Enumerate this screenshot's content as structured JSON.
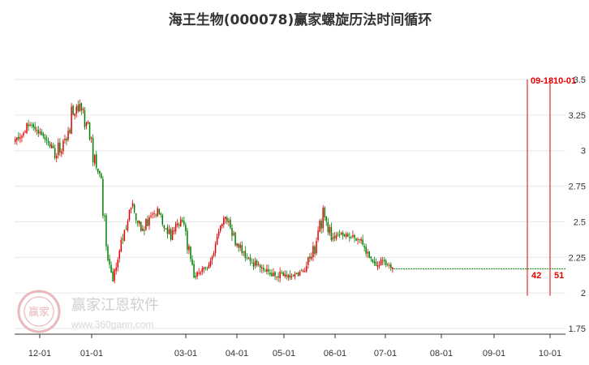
{
  "chart_data": {
    "type": "candlestick",
    "title": "海王生物(000078)赢家螺旋历法时间循环",
    "y_ticks": [
      3.5,
      3.25,
      3,
      2.75,
      2.5,
      2.25,
      2,
      1.75
    ],
    "y_tick_labels": [
      "3.5",
      "3.25",
      "3",
      "2.75",
      "2.5",
      "2.25",
      "2",
      "1.75"
    ],
    "ylim": [
      1.75,
      3.5
    ],
    "x_tick_labels": [
      "12-01",
      "01-01",
      "03-01",
      "04-01",
      "05-01",
      "06-01",
      "07-01",
      "08-01",
      "09-01",
      "10-01"
    ],
    "grid": true,
    "colors": {
      "up": "#e60000",
      "down": "#008000",
      "marker": "#e60000",
      "last_price": "#008000"
    },
    "last_close": 2.17,
    "segments": [
      {
        "label": "Dec",
        "start": 3.07,
        "end": 3.12,
        "lo": 3.0,
        "hi": 3.22,
        "days": 5
      },
      {
        "start": 3.12,
        "end": 3.2,
        "lo": 3.1,
        "hi": 3.26,
        "days": 5
      },
      {
        "start": 3.2,
        "end": 3.1,
        "lo": 3.05,
        "hi": 3.22,
        "days": 8
      },
      {
        "start": 3.1,
        "end": 2.95,
        "lo": 2.9,
        "hi": 3.12,
        "days": 8
      },
      {
        "label": "Jan",
        "start": 2.95,
        "end": 3.25,
        "lo": 2.9,
        "hi": 3.5,
        "days": 9
      },
      {
        "start": 3.25,
        "end": 3.3,
        "lo": 3.12,
        "hi": 3.4,
        "days": 6
      },
      {
        "start": 3.3,
        "end": 2.95,
        "lo": 2.8,
        "hi": 3.32,
        "days": 8
      },
      {
        "label": "Feb",
        "start": 2.95,
        "end": 2.8,
        "lo": 2.75,
        "hi": 3.0,
        "days": 4
      },
      {
        "start": 2.8,
        "end": 2.55,
        "lo": 2.5,
        "hi": 2.82,
        "days": 1
      },
      {
        "start": 2.55,
        "end": 2.05,
        "lo": 2.0,
        "hi": 2.55,
        "days": 5
      },
      {
        "start": 2.05,
        "end": 2.45,
        "lo": 2.05,
        "hi": 2.5,
        "days": 7
      },
      {
        "label": "Mar",
        "start": 2.45,
        "end": 2.58,
        "lo": 2.4,
        "hi": 2.72,
        "days": 6
      },
      {
        "start": 2.58,
        "end": 2.45,
        "lo": 2.4,
        "hi": 2.62,
        "days": 6
      },
      {
        "start": 2.45,
        "end": 2.58,
        "lo": 2.4,
        "hi": 2.62,
        "days": 8
      },
      {
        "label": "Apr",
        "start": 2.58,
        "end": 2.4,
        "lo": 2.35,
        "hi": 2.6,
        "days": 9
      },
      {
        "start": 2.4,
        "end": 2.52,
        "lo": 2.38,
        "hi": 2.55,
        "days": 6
      },
      {
        "start": 2.52,
        "end": 2.3,
        "lo": 2.25,
        "hi": 2.55,
        "days": 5
      },
      {
        "start": 2.3,
        "end": 2.12,
        "lo": 2.08,
        "hi": 2.32,
        "days": 3
      },
      {
        "start": 2.12,
        "end": 2.18,
        "lo": 2.1,
        "hi": 2.22,
        "days": 7
      },
      {
        "label": "May",
        "start": 2.18,
        "end": 2.35,
        "lo": 2.15,
        "hi": 2.4,
        "days": 6
      },
      {
        "start": 2.35,
        "end": 2.55,
        "lo": 2.3,
        "hi": 2.6,
        "days": 5
      },
      {
        "start": 2.55,
        "end": 2.38,
        "lo": 2.32,
        "hi": 2.58,
        "days": 6
      },
      {
        "start": 2.38,
        "end": 2.25,
        "lo": 2.2,
        "hi": 2.4,
        "days": 9
      },
      {
        "label": "Jun",
        "start": 2.25,
        "end": 2.15,
        "lo": 2.1,
        "hi": 2.28,
        "days": 8
      },
      {
        "start": 2.15,
        "end": 2.13,
        "lo": 2.08,
        "hi": 2.25,
        "days": 10
      },
      {
        "start": 2.13,
        "end": 2.12,
        "lo": 2.08,
        "hi": 2.2,
        "days": 8
      },
      {
        "label": "Jul",
        "start": 2.12,
        "end": 2.15,
        "lo": 2.06,
        "hi": 2.2,
        "days": 8
      },
      {
        "start": 2.15,
        "end": 2.3,
        "lo": 2.1,
        "hi": 2.35,
        "days": 5
      },
      {
        "start": 2.3,
        "end": 2.55,
        "lo": 2.25,
        "hi": 2.7,
        "days": 6
      },
      {
        "start": 2.55,
        "end": 2.4,
        "lo": 2.35,
        "hi": 2.6,
        "days": 5
      },
      {
        "label": "Aug",
        "start": 2.4,
        "end": 2.42,
        "lo": 2.35,
        "hi": 2.48,
        "days": 7
      },
      {
        "start": 2.42,
        "end": 2.38,
        "lo": 2.32,
        "hi": 2.45,
        "days": 10
      },
      {
        "start": 2.38,
        "end": 2.2,
        "lo": 2.15,
        "hi": 2.4,
        "days": 7
      },
      {
        "label": "Sep",
        "start": 2.2,
        "end": 2.22,
        "lo": 2.15,
        "hi": 2.26,
        "days": 8
      },
      {
        "start": 2.22,
        "end": 2.17,
        "lo": 2.14,
        "hi": 2.25,
        "days": 5
      }
    ],
    "markers": [
      {
        "date_label": "09-18",
        "count_label": "42"
      },
      {
        "date_label": "10-01",
        "count_label": "51"
      }
    ],
    "watermark": {
      "name": "赢家江恩软件",
      "url": "www.360gann.com",
      "logo_text": "赢家"
    }
  }
}
